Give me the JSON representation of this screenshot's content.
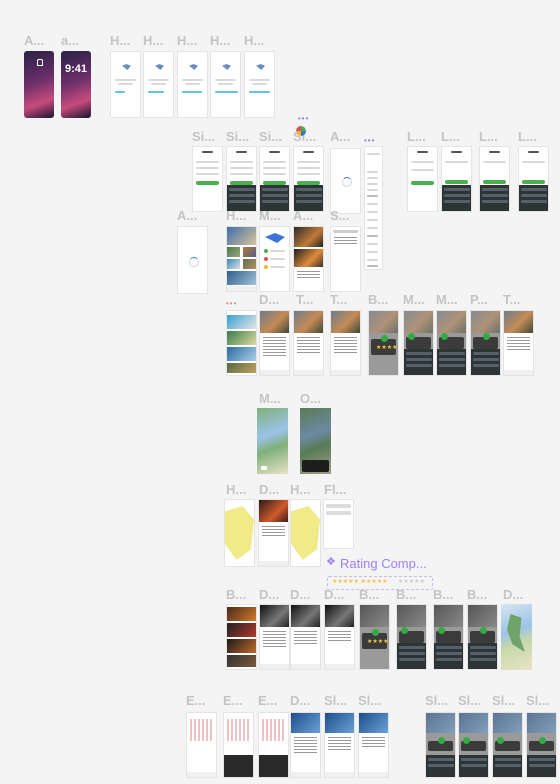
{
  "labels": {
    "r1": [
      "A...",
      "a...",
      "H...",
      "H...",
      "H...",
      "H...",
      "H..."
    ],
    "r2": [
      "Si...",
      "Si...",
      "Si...",
      "Si...",
      "A...",
      "L...",
      "L...",
      "L...",
      "L..."
    ],
    "r3": [
      "A...",
      "H...",
      "M...",
      "A...",
      "S..."
    ],
    "r4": [
      "D...",
      "T...",
      "T...",
      "B...",
      "M...",
      "M...",
      "P...",
      "T..."
    ],
    "r5": [
      "M...",
      "O..."
    ],
    "r6": [
      "H...",
      "D...",
      "H...",
      "Fl..."
    ],
    "r7": [
      "B...",
      "D...",
      "D...",
      "D...",
      "B...",
      "B...",
      "B...",
      "B...",
      "D..."
    ],
    "r8": [
      "E...",
      "E...",
      "E...",
      "D...",
      "Sl...",
      "Sl...",
      "Sl...",
      "Sl...",
      "Sl...",
      "Sl..."
    ]
  },
  "phone_clock": "9:41",
  "rating_component": "Rating Comp...",
  "rating_icon": "component-icon",
  "accent_colors": {
    "primary": "#4caf50",
    "link": "#3b74d6",
    "component": "#9b82ef"
  }
}
